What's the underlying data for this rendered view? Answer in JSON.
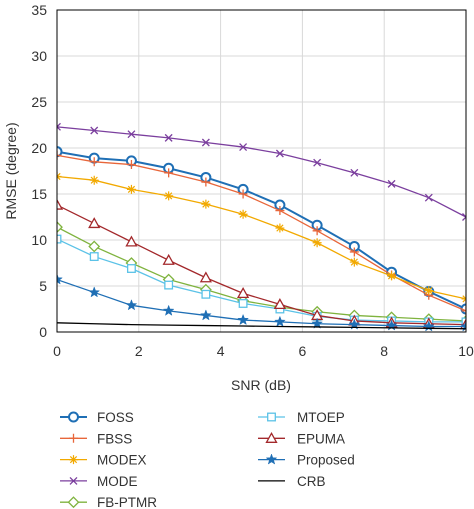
{
  "chart_data": {
    "type": "line",
    "xlabel": "SNR (dB)",
    "ylabel": "RMSE (degree)",
    "xlim": [
      0,
      10
    ],
    "ylim": [
      0,
      35
    ],
    "xticks": [
      "0",
      "2",
      "4",
      "6",
      "8",
      "10"
    ],
    "yticks": [
      "0",
      "5",
      "10",
      "15",
      "20",
      "25",
      "30",
      "35"
    ],
    "grid": true,
    "legend_position": "bottom",
    "x": [
      0,
      0.91,
      1.82,
      2.73,
      3.64,
      4.55,
      5.45,
      6.36,
      7.27,
      8.18,
      9.09,
      10
    ],
    "series": [
      {
        "name": "FOSS",
        "color": "#1f6fb5",
        "marker": "circle",
        "values": [
          19.6,
          18.9,
          18.6,
          17.8,
          16.8,
          15.5,
          13.8,
          11.6,
          9.3,
          6.5,
          4.4,
          2.5
        ]
      },
      {
        "name": "FBSS",
        "color": "#e8663a",
        "marker": "plus",
        "values": [
          19.2,
          18.5,
          18.2,
          17.3,
          16.3,
          15.0,
          13.2,
          11.0,
          8.7,
          6.2,
          4.0,
          2.3
        ]
      },
      {
        "name": "MODEX",
        "color": "#f2a900",
        "marker": "asterisk",
        "values": [
          16.9,
          16.5,
          15.5,
          14.8,
          13.9,
          12.8,
          11.3,
          9.7,
          7.6,
          6.1,
          4.5,
          3.6
        ]
      },
      {
        "name": "MODE",
        "color": "#7b3f9e",
        "marker": "cross",
        "values": [
          22.3,
          21.9,
          21.5,
          21.1,
          20.6,
          20.1,
          19.4,
          18.4,
          17.3,
          16.1,
          14.6,
          12.5
        ]
      },
      {
        "name": "FB-PTMR",
        "color": "#7fb33e",
        "marker": "diamond",
        "values": [
          11.4,
          9.3,
          7.5,
          5.7,
          4.6,
          3.4,
          2.7,
          2.2,
          1.8,
          1.6,
          1.4,
          1.2
        ]
      },
      {
        "name": "MTOEP",
        "color": "#5bc2e7",
        "marker": "square",
        "values": [
          10.1,
          8.2,
          6.9,
          5.1,
          4.1,
          3.1,
          2.5,
          1.7,
          1.3,
          1.2,
          1.1,
          1.1
        ]
      },
      {
        "name": "EPUMA",
        "color": "#a3282b",
        "marker": "triangle",
        "values": [
          13.8,
          11.8,
          9.8,
          7.8,
          5.9,
          4.2,
          3.0,
          1.8,
          1.2,
          1.0,
          0.9,
          0.8
        ]
      },
      {
        "name": "Proposed",
        "color": "#1f6fb5",
        "marker": "star",
        "values": [
          5.7,
          4.3,
          2.9,
          2.3,
          1.8,
          1.3,
          1.1,
          0.9,
          0.8,
          0.7,
          0.6,
          0.6
        ]
      },
      {
        "name": "CRB",
        "color": "#000000",
        "marker": "none",
        "values": [
          1.0,
          0.9,
          0.8,
          0.75,
          0.7,
          0.65,
          0.6,
          0.55,
          0.5,
          0.45,
          0.4,
          0.35
        ]
      }
    ]
  }
}
